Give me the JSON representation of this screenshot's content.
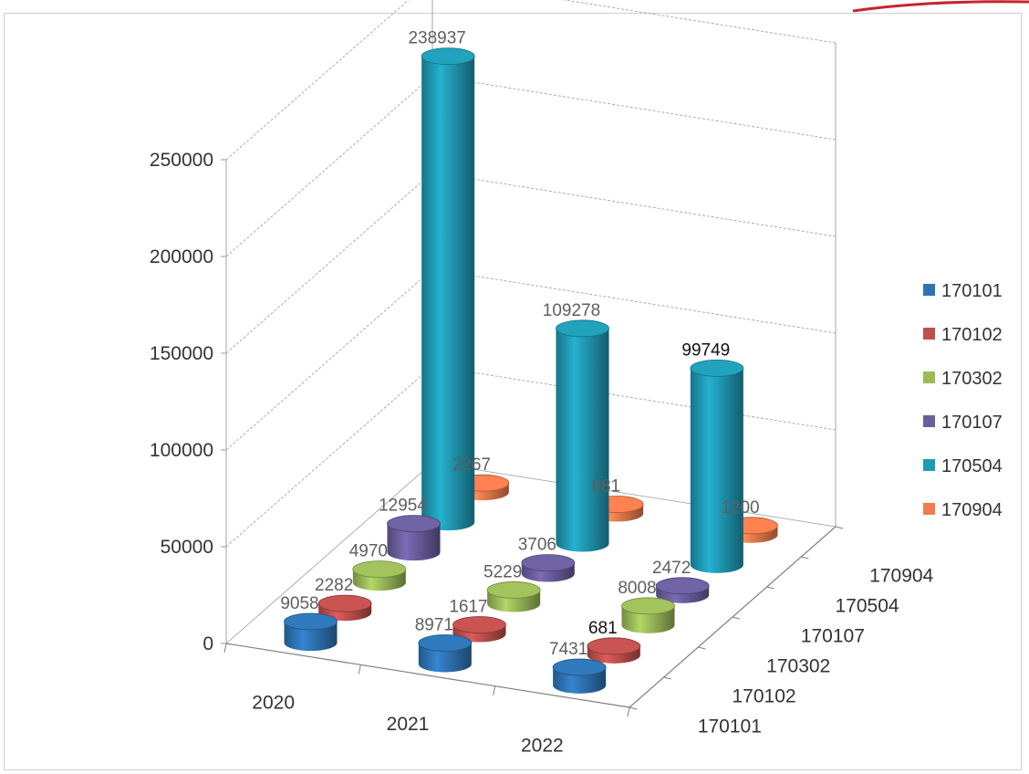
{
  "chart_data": {
    "type": "bar",
    "subtype": "3d-cylinder",
    "title": "",
    "xlabel": "",
    "ylabel": "",
    "categories": [
      "2020",
      "2021",
      "2022"
    ],
    "ylim": [
      0,
      250000
    ],
    "yticks": [
      "0",
      "50000",
      "100000",
      "150000",
      "200000",
      "250000"
    ],
    "depth_labels": [
      "170101",
      "170102",
      "170302",
      "170107",
      "170504",
      "170904"
    ],
    "grid": true,
    "legend_position": "right",
    "series": [
      {
        "name": "170101",
        "color": "#2e74b5",
        "values": [
          9058,
          8971,
          7431
        ],
        "labels": [
          "9058",
          "8971",
          "7431"
        ]
      },
      {
        "name": "170102",
        "color": "#c0504d",
        "values": [
          2282,
          1617,
          681
        ],
        "labels": [
          "2282",
          "1617",
          "681"
        ]
      },
      {
        "name": "170302",
        "color": "#9bbb59",
        "values": [
          4970,
          5229,
          8008
        ],
        "labels": [
          "4970",
          "5229",
          "8008"
        ]
      },
      {
        "name": "170107",
        "color": "#6b5e9e",
        "values": [
          12954,
          3706,
          2472
        ],
        "labels": [
          "12954",
          "3706",
          "2472"
        ]
      },
      {
        "name": "170504",
        "color": "#1f9bb5",
        "values": [
          238937,
          109278,
          99749
        ],
        "labels": [
          "238937",
          "109278",
          "99749"
        ]
      },
      {
        "name": "170904",
        "color": "#f47c4c",
        "values": [
          2267,
          881,
          1200
        ],
        "labels": [
          "2267",
          "881",
          "1200"
        ]
      }
    ]
  }
}
